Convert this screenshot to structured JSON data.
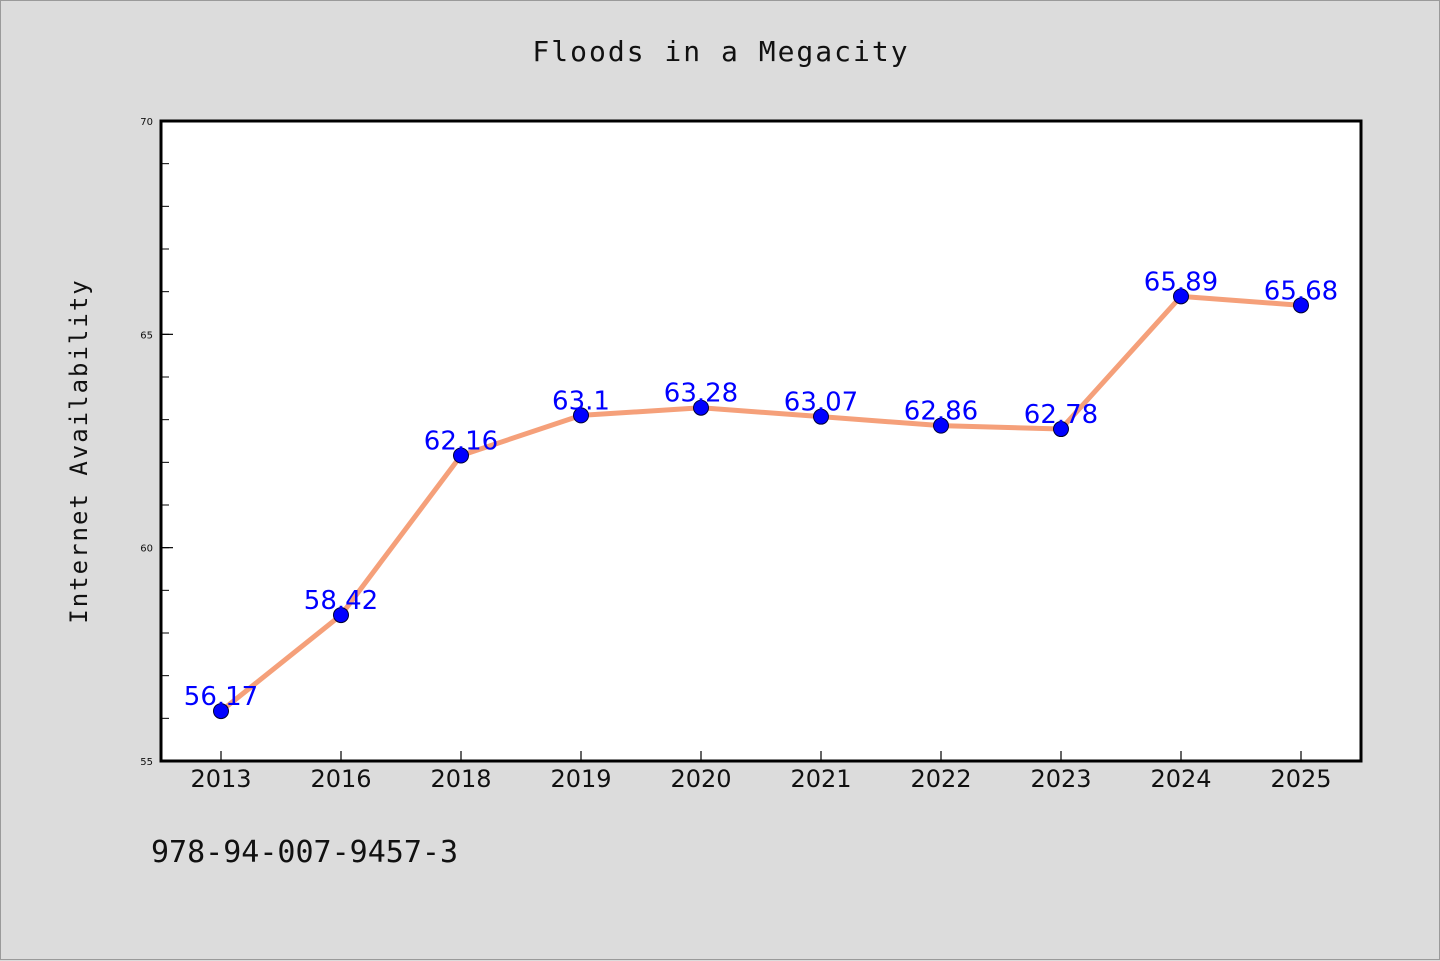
{
  "colors": {
    "background": "#dcdcdc",
    "plot_background": "#ffffff",
    "line": "#f5a07a",
    "marker": "#0000ff",
    "data_label": "#0000ff",
    "axes": "#000000"
  },
  "footer": {
    "code": "978-94-007-9457-3"
  },
  "chart_data": {
    "type": "line",
    "title": "Floods in a Megacity",
    "xlabel": "",
    "ylabel": "Internet Availability",
    "categories": [
      "2013",
      "2016",
      "2018",
      "2019",
      "2020",
      "2021",
      "2022",
      "2023",
      "2024",
      "2025"
    ],
    "values": [
      56.17,
      58.42,
      62.16,
      63.1,
      63.28,
      63.07,
      62.86,
      62.78,
      65.89,
      65.68
    ],
    "data_labels": [
      "56.17",
      "58.42",
      "62.16",
      "63.1",
      "63.28",
      "63.07",
      "62.86",
      "62.78",
      "65.89",
      "65.68"
    ],
    "ylim": [
      55,
      70
    ],
    "yticks": [
      55,
      60,
      65,
      70
    ],
    "y_minor_step": 1,
    "grid": false,
    "legend": "none"
  }
}
